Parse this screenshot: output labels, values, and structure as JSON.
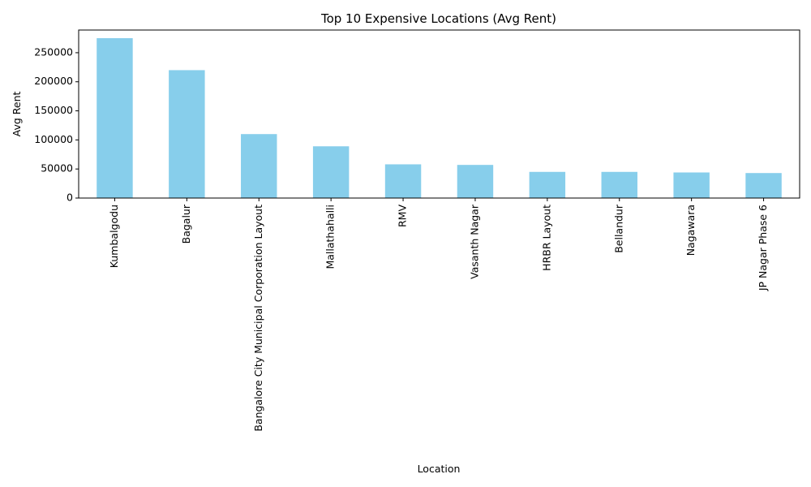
{
  "chart_data": {
    "type": "bar",
    "title": "Top 10 Expensive Locations (Avg Rent)",
    "xlabel": "Location",
    "ylabel": "Avg Rent",
    "categories": [
      "Kumbalgodu",
      "Bagalur",
      "Bangalore City Municipal Corporation Layout",
      "Mallathahalli",
      "RMV",
      "Vasanth Nagar",
      "HRBR Layout",
      "Bellandur",
      "Nagawara",
      "JP Nagar Phase 6"
    ],
    "values": [
      275000,
      220000,
      110000,
      89000,
      58000,
      57000,
      45000,
      45000,
      44000,
      43000
    ],
    "ylim": [
      0,
      289000
    ],
    "yticks": [
      0,
      50000,
      100000,
      150000,
      200000,
      250000
    ],
    "bar_color": "#87ceeb",
    "grid": false,
    "legend": "none"
  }
}
